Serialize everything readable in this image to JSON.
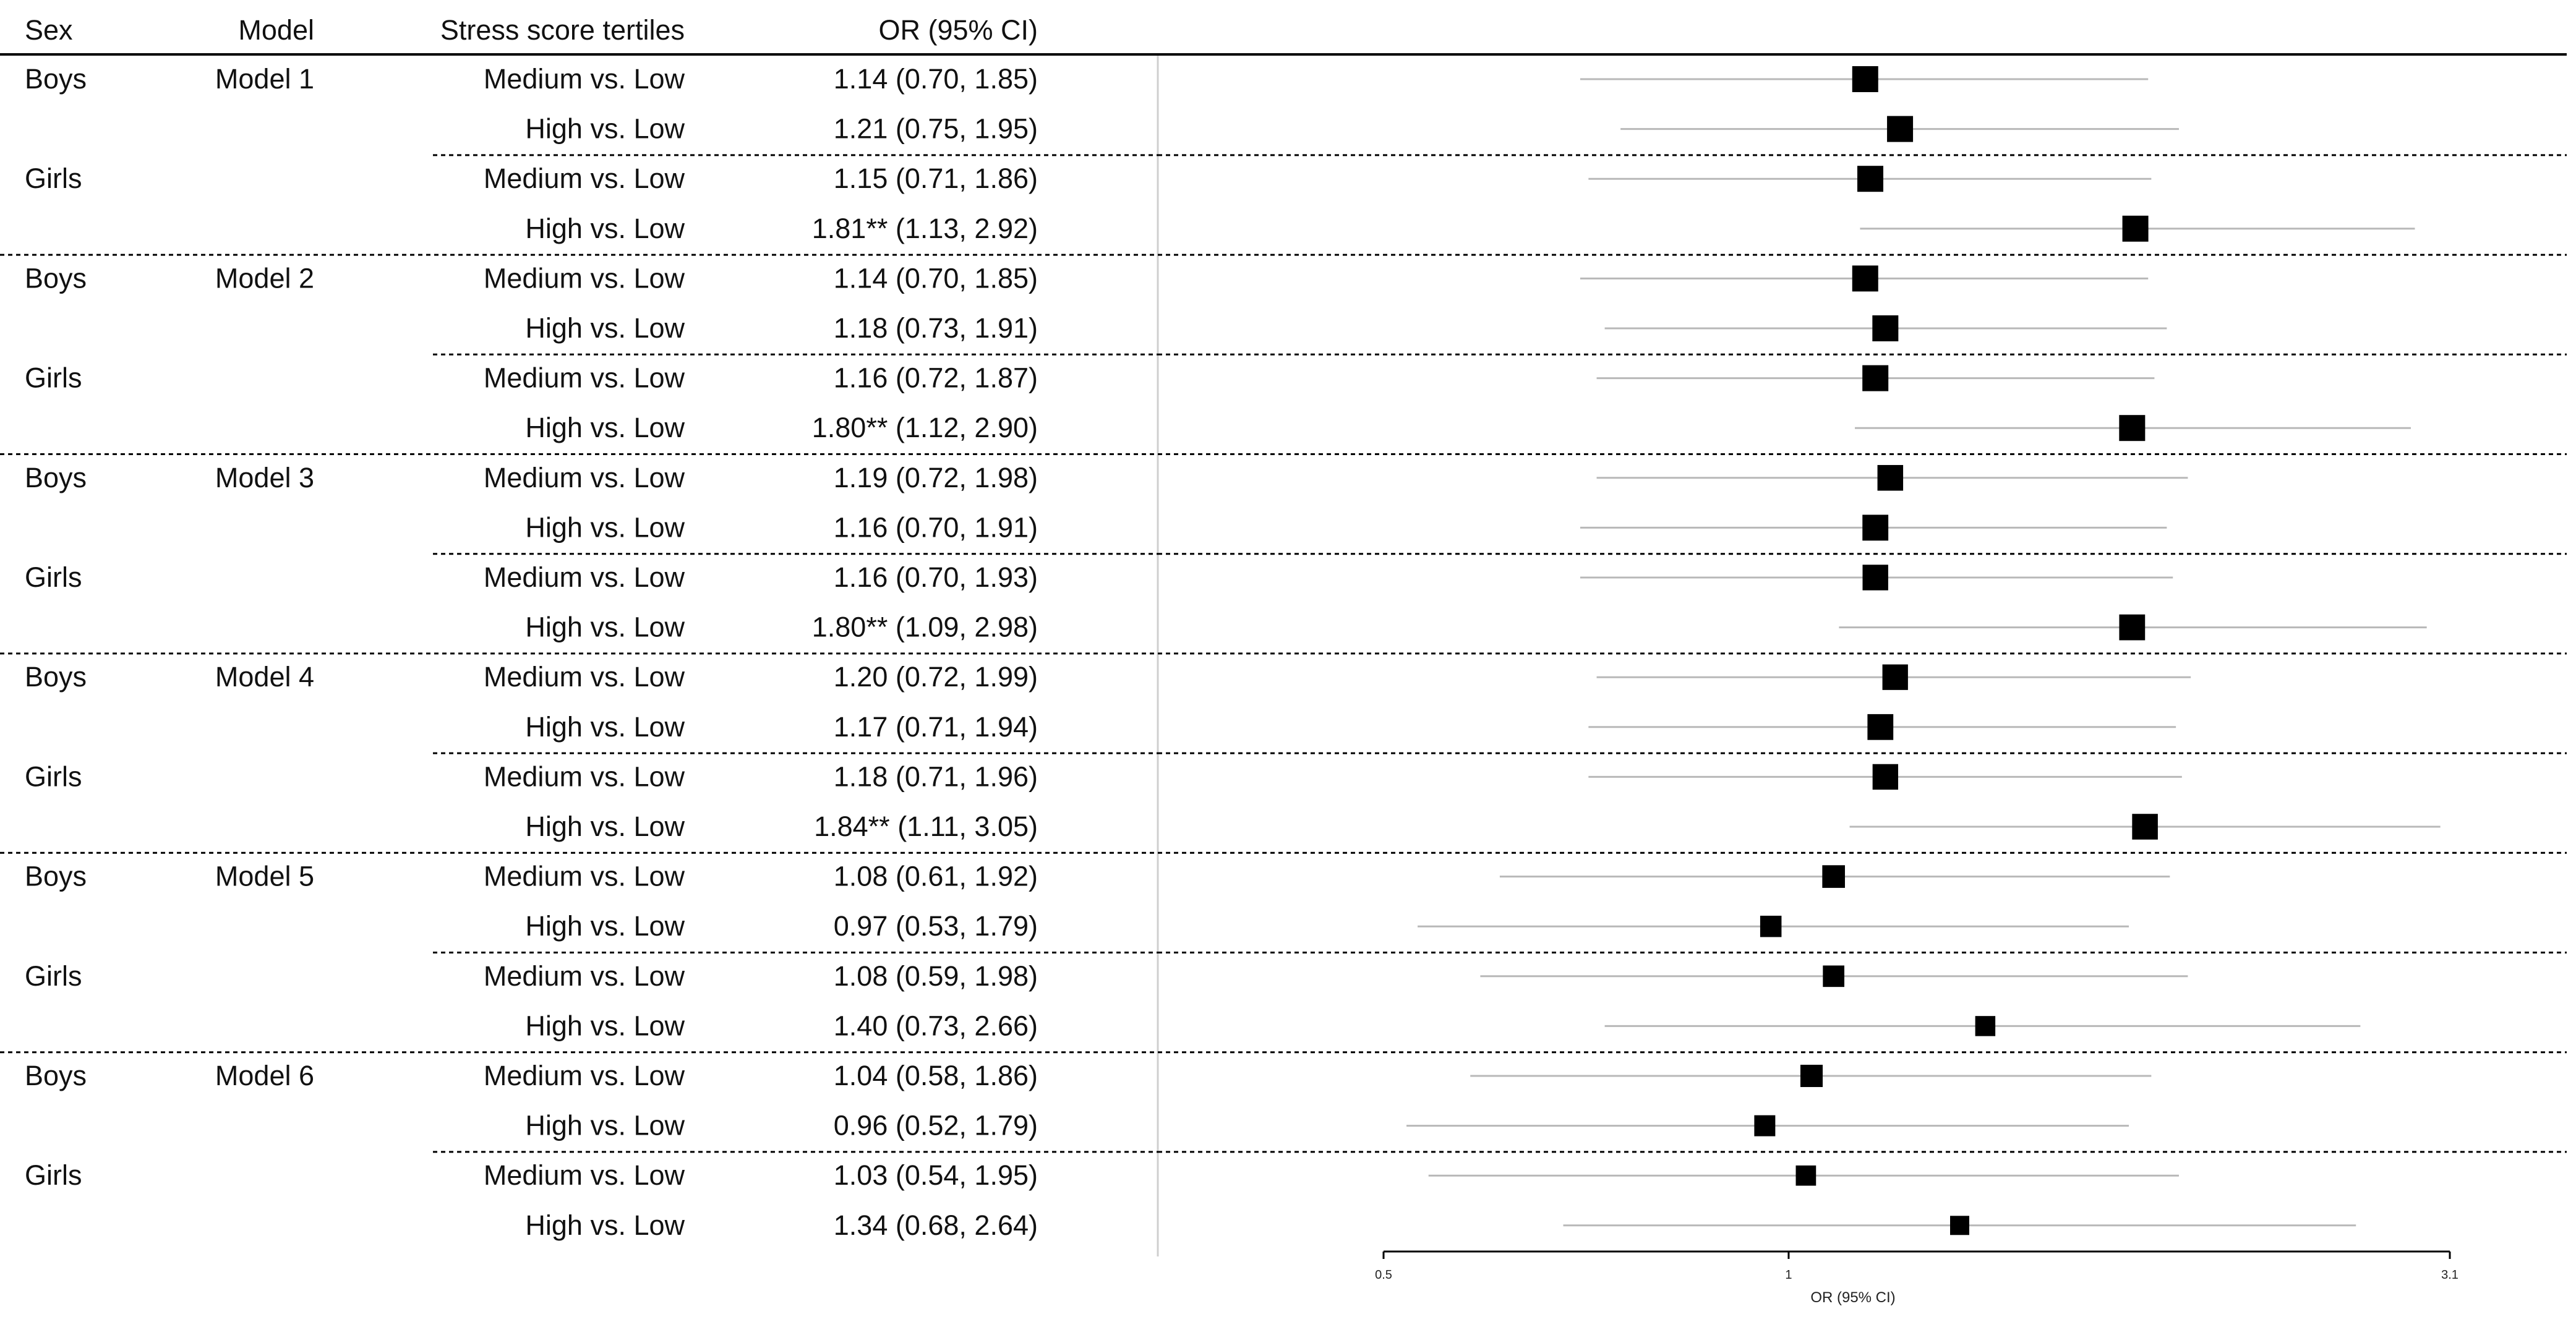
{
  "columns": {
    "sex": "Sex",
    "model": "Model",
    "tertile": "Stress score tertiles",
    "or": "OR (95% CI)"
  },
  "chart_data": {
    "type": "forest",
    "x_label": "OR (95% CI)",
    "x_scale": "log",
    "x_range": [
      0.5,
      3.1
    ],
    "x_ticks": [
      {
        "value": 0.5,
        "label": "0.5"
      },
      {
        "value": 1,
        "label": "1"
      },
      {
        "value": 3.1,
        "label": "3.1"
      }
    ],
    "rows": [
      {
        "sex": "Boys",
        "model": "Model 1",
        "tertile": "Medium vs. Low",
        "or_text": "1.14 (0.70, 1.85)",
        "or": 1.14,
        "lo": 0.7,
        "hi": 1.85
      },
      {
        "sex": "",
        "model": "",
        "tertile": "High vs. Low",
        "or_text": "1.21 (0.75, 1.95)",
        "or": 1.21,
        "lo": 0.75,
        "hi": 1.95
      },
      {
        "sex": "Girls",
        "model": "",
        "tertile": "Medium vs. Low",
        "or_text": "1.15 (0.71, 1.86)",
        "or": 1.15,
        "lo": 0.71,
        "hi": 1.86
      },
      {
        "sex": "",
        "model": "",
        "tertile": "High vs. Low",
        "or_text": "1.81** (1.13, 2.92)",
        "or": 1.81,
        "lo": 1.13,
        "hi": 2.92
      },
      {
        "sex": "Boys",
        "model": "Model 2",
        "tertile": "Medium vs. Low",
        "or_text": "1.14 (0.70, 1.85)",
        "or": 1.14,
        "lo": 0.7,
        "hi": 1.85
      },
      {
        "sex": "",
        "model": "",
        "tertile": "High vs. Low",
        "or_text": "1.18 (0.73, 1.91)",
        "or": 1.18,
        "lo": 0.73,
        "hi": 1.91
      },
      {
        "sex": "Girls",
        "model": "",
        "tertile": "Medium vs. Low",
        "or_text": "1.16 (0.72, 1.87)",
        "or": 1.16,
        "lo": 0.72,
        "hi": 1.87
      },
      {
        "sex": "",
        "model": "",
        "tertile": "High vs. Low",
        "or_text": "1.80** (1.12, 2.90)",
        "or": 1.8,
        "lo": 1.12,
        "hi": 2.9
      },
      {
        "sex": "Boys",
        "model": "Model 3",
        "tertile": "Medium vs. Low",
        "or_text": "1.19 (0.72, 1.98)",
        "or": 1.19,
        "lo": 0.72,
        "hi": 1.98
      },
      {
        "sex": "",
        "model": "",
        "tertile": "High vs. Low",
        "or_text": "1.16 (0.70, 1.91)",
        "or": 1.16,
        "lo": 0.7,
        "hi": 1.91
      },
      {
        "sex": "Girls",
        "model": "",
        "tertile": "Medium vs. Low",
        "or_text": "1.16 (0.70, 1.93)",
        "or": 1.16,
        "lo": 0.7,
        "hi": 1.93
      },
      {
        "sex": "",
        "model": "",
        "tertile": "High vs. Low",
        "or_text": "1.80** (1.09, 2.98)",
        "or": 1.8,
        "lo": 1.09,
        "hi": 2.98
      },
      {
        "sex": "Boys",
        "model": "Model 4",
        "tertile": "Medium vs. Low",
        "or_text": "1.20 (0.72, 1.99)",
        "or": 1.2,
        "lo": 0.72,
        "hi": 1.99
      },
      {
        "sex": "",
        "model": "",
        "tertile": "High vs. Low",
        "or_text": "1.17 (0.71, 1.94)",
        "or": 1.17,
        "lo": 0.71,
        "hi": 1.94
      },
      {
        "sex": "Girls",
        "model": "",
        "tertile": "Medium vs. Low",
        "or_text": "1.18 (0.71, 1.96)",
        "or": 1.18,
        "lo": 0.71,
        "hi": 1.96
      },
      {
        "sex": "",
        "model": "",
        "tertile": "High vs. Low",
        "or_text": "1.84** (1.11, 3.05)",
        "or": 1.84,
        "lo": 1.11,
        "hi": 3.05
      },
      {
        "sex": "Boys",
        "model": "Model 5",
        "tertile": "Medium vs. Low",
        "or_text": "1.08 (0.61, 1.92)",
        "or": 1.08,
        "lo": 0.61,
        "hi": 1.92
      },
      {
        "sex": "",
        "model": "",
        "tertile": "High vs. Low",
        "or_text": "0.97 (0.53, 1.79)",
        "or": 0.97,
        "lo": 0.53,
        "hi": 1.79
      },
      {
        "sex": "Girls",
        "model": "",
        "tertile": "Medium vs. Low",
        "or_text": "1.08 (0.59, 1.98)",
        "or": 1.08,
        "lo": 0.59,
        "hi": 1.98
      },
      {
        "sex": "",
        "model": "",
        "tertile": "High vs. Low",
        "or_text": "1.40 (0.73, 2.66)",
        "or": 1.4,
        "lo": 0.73,
        "hi": 2.66
      },
      {
        "sex": "Boys",
        "model": "Model 6",
        "tertile": "Medium vs. Low",
        "or_text": "1.04 (0.58, 1.86)",
        "or": 1.04,
        "lo": 0.58,
        "hi": 1.86
      },
      {
        "sex": "",
        "model": "",
        "tertile": "High vs. Low",
        "or_text": "0.96 (0.52, 1.79)",
        "or": 0.96,
        "lo": 0.52,
        "hi": 1.79
      },
      {
        "sex": "Girls",
        "model": "",
        "tertile": "Medium vs. Low",
        "or_text": "1.03 (0.54, 1.95)",
        "or": 1.03,
        "lo": 0.54,
        "hi": 1.95
      },
      {
        "sex": "",
        "model": "",
        "tertile": "High vs. Low",
        "or_text": "1.34 (0.68, 2.64)",
        "or": 1.34,
        "lo": 0.68,
        "hi": 2.64
      }
    ]
  }
}
